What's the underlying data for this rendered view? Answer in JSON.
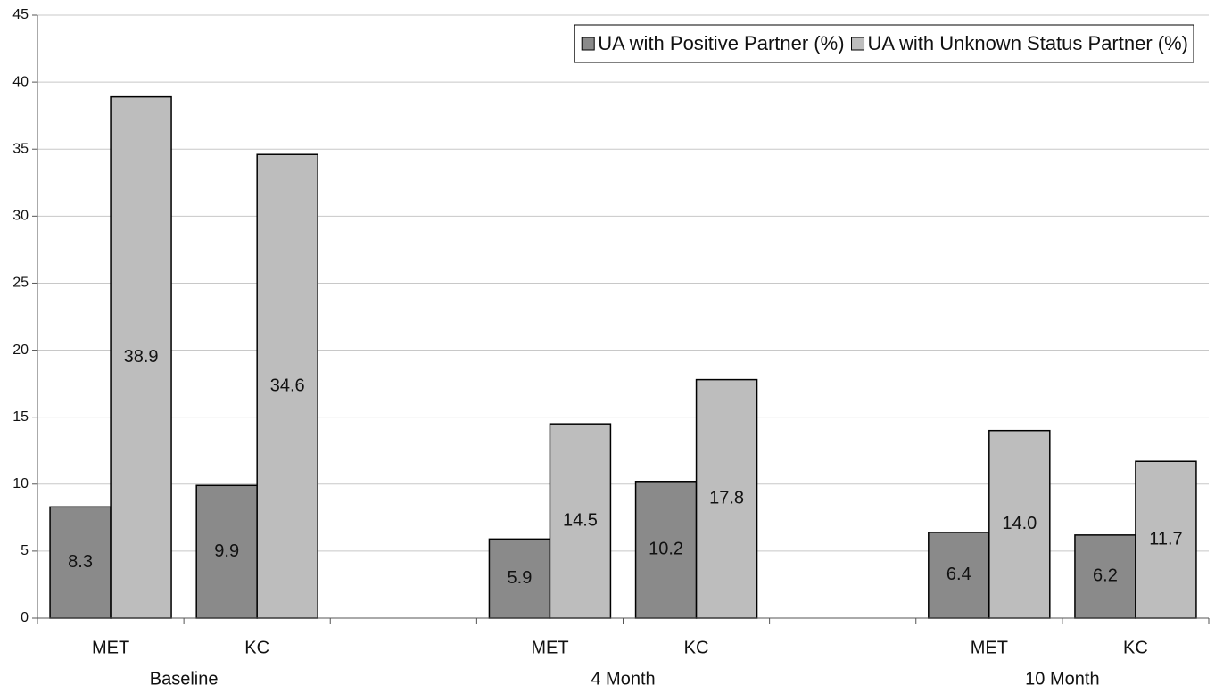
{
  "chart_data": {
    "type": "bar",
    "groups": [
      {
        "name": "Baseline",
        "categories": [
          "MET",
          "KC"
        ]
      },
      {
        "name": "4 Month",
        "categories": [
          "MET",
          "KC"
        ]
      },
      {
        "name": "10 Month",
        "categories": [
          "MET",
          "KC"
        ]
      }
    ],
    "series": [
      {
        "name": "UA with Positive Partner (%)",
        "color": "#8a8a8a",
        "values": [
          8.3,
          9.9,
          5.9,
          10.2,
          6.4,
          6.2
        ],
        "value_labels": [
          "8.3",
          "9.9",
          "5.9",
          "10.2",
          "6.4",
          "6.2"
        ]
      },
      {
        "name": "UA with Unknown Status Partner (%)",
        "color": "#bdbdbd",
        "values": [
          38.9,
          34.6,
          14.5,
          17.8,
          14.0,
          11.7
        ],
        "value_labels": [
          "38.9",
          "34.6",
          "14.5",
          "17.8",
          "14.0",
          "11.7"
        ]
      }
    ],
    "ylim": [
      0,
      45
    ],
    "yticks": [
      0,
      5,
      10,
      15,
      20,
      25,
      30,
      35,
      40,
      45
    ],
    "grid": true,
    "legend": "top-right"
  }
}
